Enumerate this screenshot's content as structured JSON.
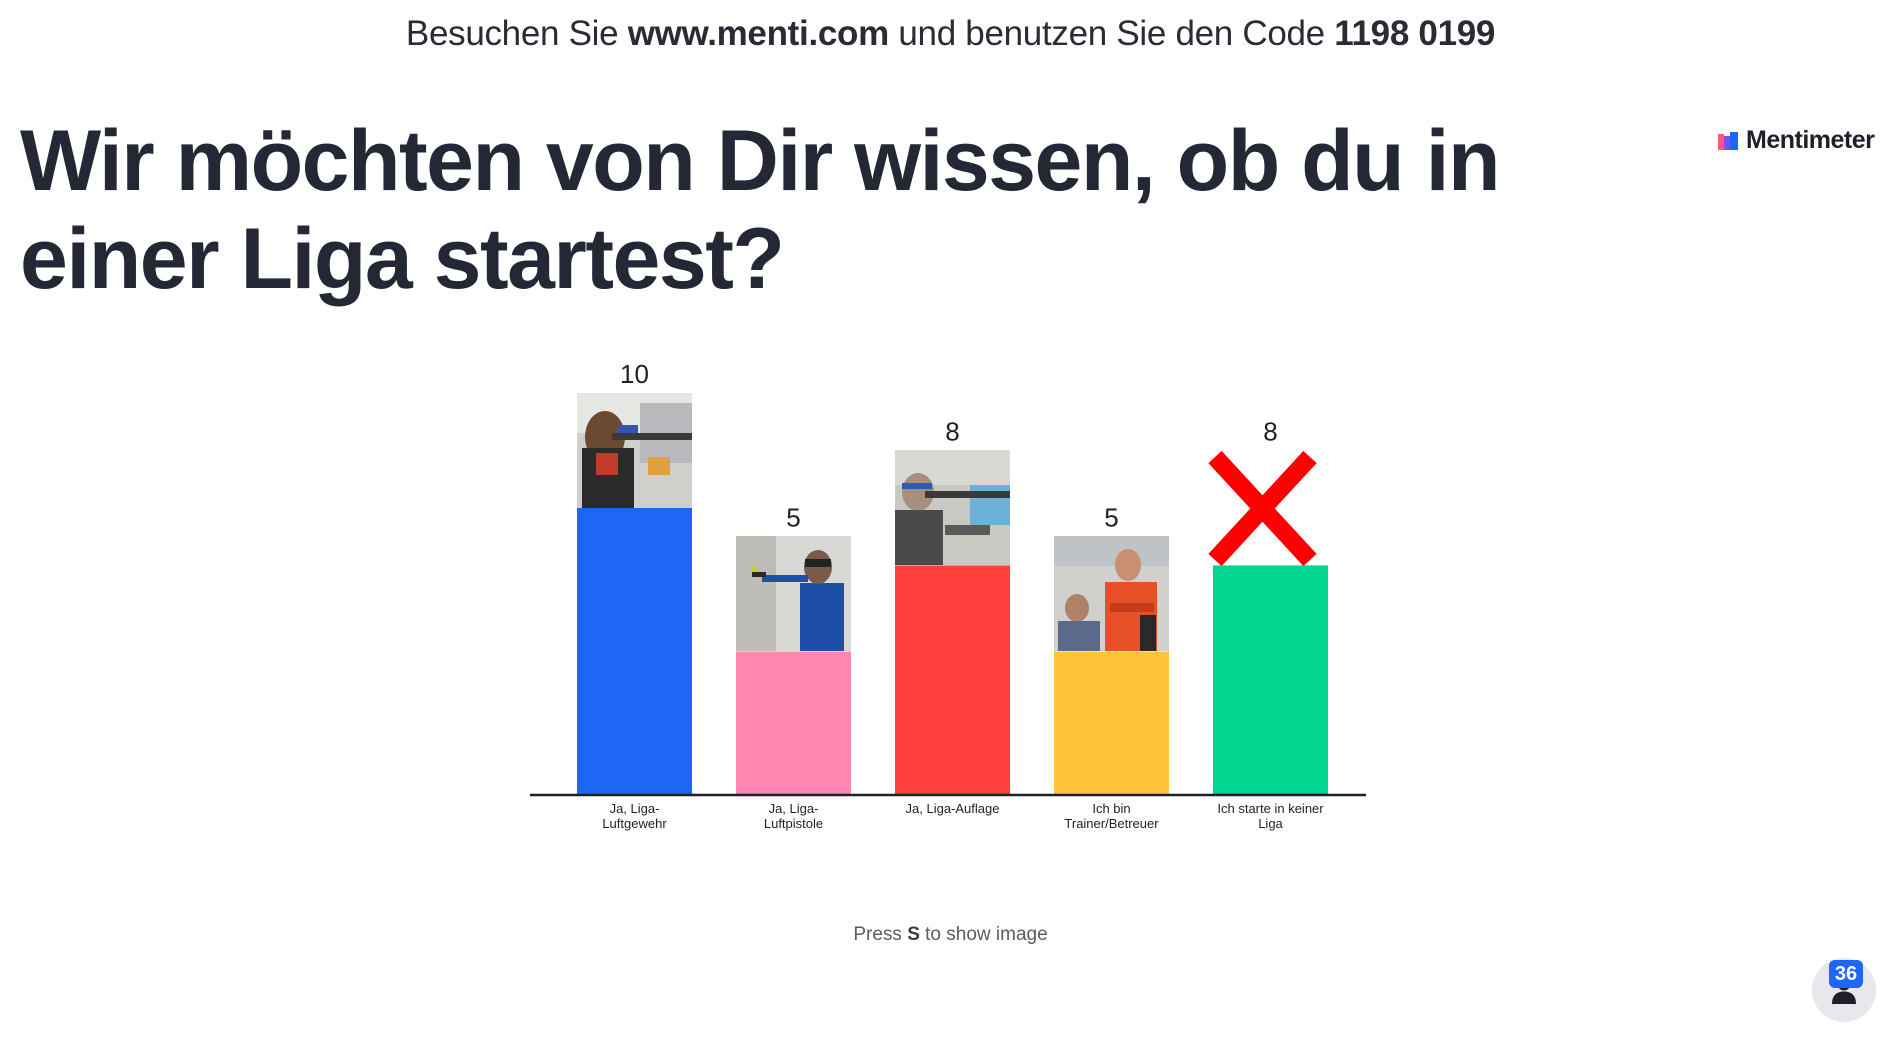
{
  "join": {
    "prefix": "Besuchen Sie ",
    "url": "www.menti.com",
    "middle": " und benutzen Sie den Code ",
    "code": "1198 0199"
  },
  "question": "Wir möchten von Dir wissen, ob du in einer Liga startest?",
  "logo": {
    "text": "Mentimeter",
    "icon": "mentimeter-logo-icon"
  },
  "chart_data": {
    "type": "bar",
    "categories": [
      [
        "Ja, Liga-",
        "Luftgewehr"
      ],
      [
        "Ja, Liga-",
        "Luftpistole"
      ],
      [
        "Ja, Liga-Auflage"
      ],
      [
        "Ich bin",
        "Trainer/Betreuer"
      ],
      [
        "Ich starte in keiner",
        "Liga"
      ]
    ],
    "values": [
      10,
      5,
      8,
      5,
      8
    ],
    "colors": [
      "#1e66f5",
      "#ff86ae",
      "#ff403a",
      "#ffc43a",
      "#00d68f"
    ],
    "images": [
      "photo-rifle-shooter",
      "photo-pistol-shooter",
      "photo-supported-rifle-shooter",
      "photo-coach",
      "red-x-icon"
    ],
    "ylim": [
      0,
      10
    ],
    "grid": false,
    "legend": "none"
  },
  "hint": {
    "prefix": "Press ",
    "key": "S",
    "suffix": " to show image"
  },
  "audience": {
    "count": "36",
    "icon": "person-icon"
  }
}
